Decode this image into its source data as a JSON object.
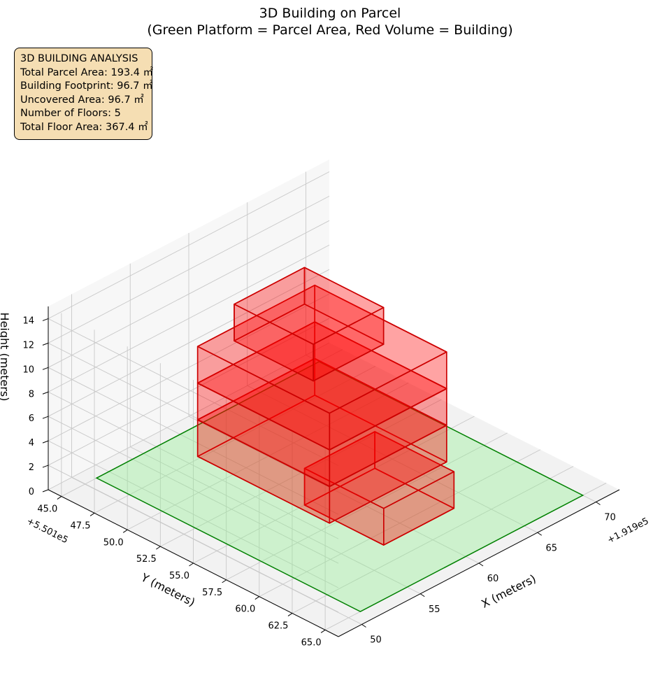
{
  "chart_data": {
    "type": "3d-bar",
    "title": [
      "3D Building on Parcel",
      "(Green Platform = Parcel Area, Red Volume = Building)"
    ],
    "xlabel": "X (meters)",
    "ylabel": "Y (meters)",
    "zlabel": "Height (meters)",
    "x_offset_label": "+1.919e5",
    "y_offset_label": "+5.501e5",
    "xlim": [
      48,
      72
    ],
    "ylim": [
      44,
      66
    ],
    "zlim": [
      0,
      15
    ],
    "x_ticks": [
      "50",
      "55",
      "60",
      "65",
      "70"
    ],
    "y_ticks": [
      "45.0",
      "47.5",
      "50.0",
      "52.5",
      "55.0",
      "57.5",
      "60.0",
      "62.5",
      "65.0"
    ],
    "z_ticks": [
      "0",
      "2",
      "4",
      "6",
      "8",
      "10",
      "12",
      "14"
    ],
    "grid": true,
    "view": {
      "elev": 30,
      "azim": 45
    },
    "parcel": {
      "color": "#90ee90",
      "edge_color": "#008000",
      "x_range": [
        51,
        70
      ],
      "y_range": [
        45,
        65
      ],
      "z": 0
    },
    "floors": [
      {
        "floor": 1,
        "x_range": [
          57.5,
          63.5
        ],
        "y_range": [
          55,
          61
        ],
        "z_range": [
          0,
          3
        ]
      },
      {
        "floor": 2,
        "x_range": [
          54,
          64
        ],
        "y_range": [
          50,
          60
        ],
        "z_range": [
          3,
          6
        ]
      },
      {
        "floor": 3,
        "x_range": [
          54,
          64
        ],
        "y_range": [
          50,
          60
        ],
        "z_range": [
          6,
          9
        ]
      },
      {
        "floor": 4,
        "x_range": [
          54,
          64
        ],
        "y_range": [
          50,
          60
        ],
        "z_range": [
          9,
          12
        ]
      },
      {
        "floor": 5,
        "x_range": [
          56,
          62
        ],
        "y_range": [
          51,
          57
        ],
        "z_range": [
          12,
          15
        ]
      }
    ],
    "building_color": "#ff0000",
    "building_edge_color": "#cc0000"
  },
  "info_box": {
    "lines": [
      "3D BUILDING ANALYSIS",
      "Total Parcel Area: 193.4 ㎡",
      "Building Footprint: 96.7 ㎡",
      "Uncovered Area: 96.7 ㎡",
      "Number of Floors: 5",
      "Total Floor Area: 367.4 ㎡"
    ]
  }
}
